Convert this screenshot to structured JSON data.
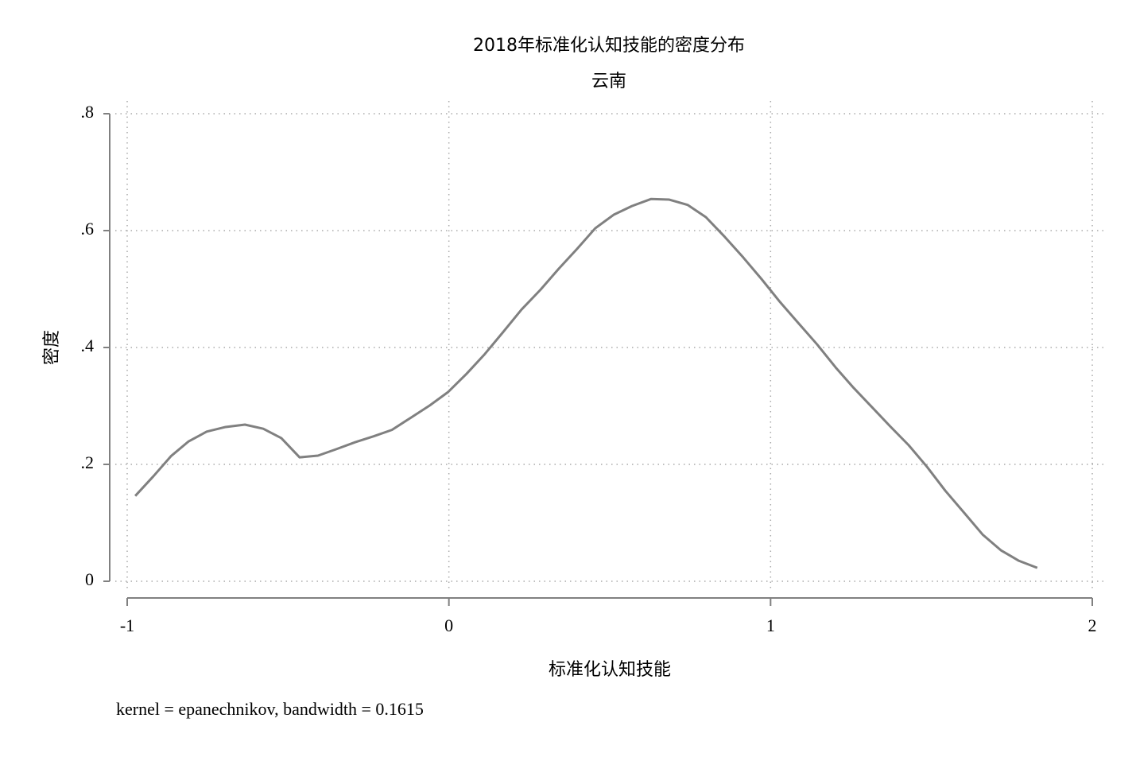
{
  "chart_data": {
    "type": "line",
    "title": "2018年标准化认知技能的密度分布",
    "subtitle": "云南",
    "y_label": "密度",
    "x_label": "标准化认知技能",
    "note": "kernel = epanechnikov, bandwidth = 0.1615",
    "color": "#808080",
    "grid": true,
    "x": [
      -0.975,
      -0.918,
      -0.864,
      -0.81,
      -0.753,
      -0.694,
      -0.634,
      -0.577,
      -0.521,
      -0.464,
      -0.407,
      -0.35,
      -0.291,
      -0.234,
      -0.177,
      -0.118,
      -0.059,
      -0.002,
      0.055,
      0.112,
      0.168,
      0.226,
      0.285,
      0.342,
      0.399,
      0.455,
      0.512,
      0.569,
      0.628,
      0.685,
      0.742,
      0.799,
      0.858,
      0.915,
      0.972,
      1.029,
      1.086,
      1.145,
      1.202,
      1.258,
      1.315,
      1.372,
      1.429,
      1.486,
      1.543,
      1.602,
      1.659,
      1.716,
      1.772,
      1.829
    ],
    "values": [
      0.146,
      0.18,
      0.214,
      0.239,
      0.256,
      0.264,
      0.268,
      0.261,
      0.245,
      0.212,
      0.215,
      0.226,
      0.238,
      0.248,
      0.259,
      0.28,
      0.301,
      0.324,
      0.355,
      0.389,
      0.426,
      0.465,
      0.499,
      0.535,
      0.569,
      0.604,
      0.627,
      0.642,
      0.654,
      0.653,
      0.644,
      0.623,
      0.589,
      0.554,
      0.517,
      0.478,
      0.442,
      0.405,
      0.366,
      0.331,
      0.298,
      0.265,
      0.233,
      0.196,
      0.155,
      0.117,
      0.08,
      0.053,
      0.035,
      0.023
    ],
    "xlim": [
      -1,
      2
    ],
    "xticks": [
      -1,
      0,
      1,
      2
    ],
    "ylim": [
      0,
      0.8
    ],
    "yticks": [
      0,
      {
        "value": 0.2,
        "label": ".2"
      },
      {
        "value": 0.4,
        "label": ".4"
      },
      {
        "value": 0.6,
        "label": ".6"
      },
      {
        "value": 0.8,
        "label": ".8"
      }
    ]
  }
}
